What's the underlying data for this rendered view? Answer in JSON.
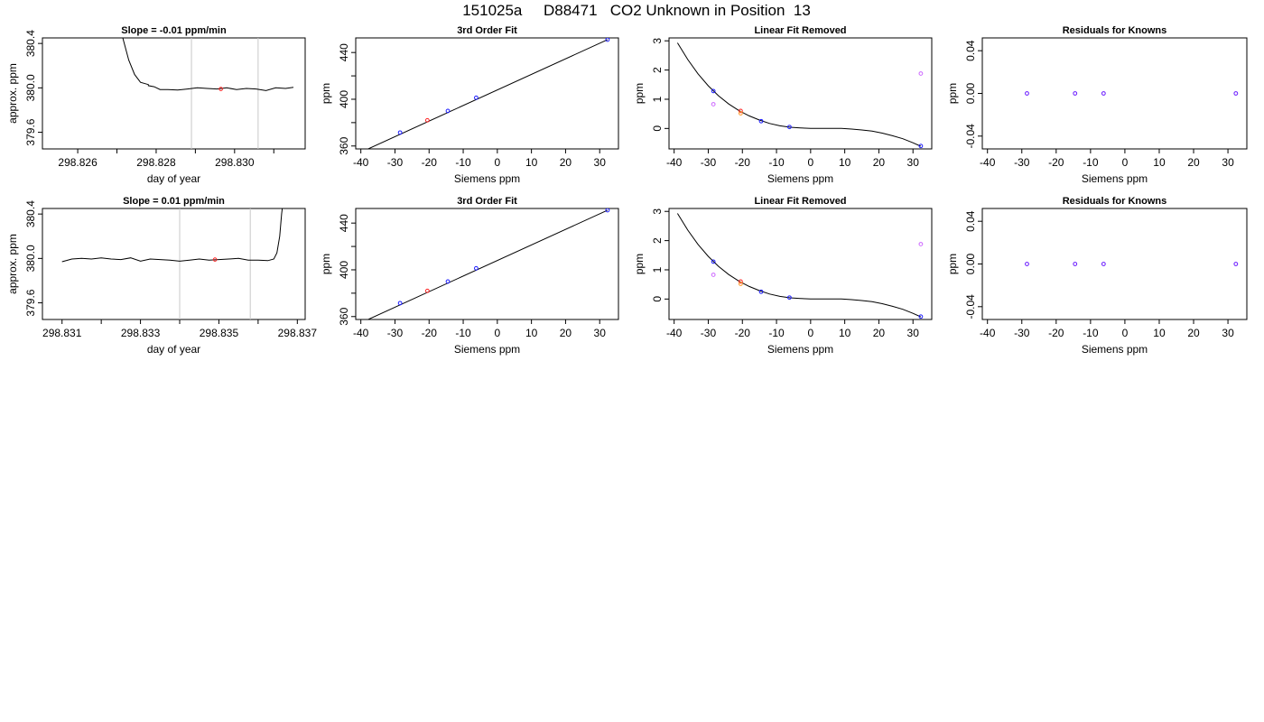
{
  "page_title": "151025a     D88471   CO2 Unknown in Position  13",
  "colors": {
    "axis": "#000000",
    "line": "#000000",
    "vline": "#c8c8c8",
    "known_blue": "#1a1aff",
    "red": "#ff2020",
    "orange": "#ff9a2a",
    "violet": "#cc66ff",
    "purple": "#6a1aff"
  },
  "chart_data": [
    {
      "panel": "row1-time",
      "type": "line",
      "title": "Slope =  -0.01  ppm/min",
      "xlabel": "day of year",
      "ylabel": "approx. ppm",
      "xlim": [
        298.8251,
        298.8318
      ],
      "ylim": [
        379.45,
        380.45
      ],
      "xticks": [
        "298.826",
        "298.828",
        "298.830"
      ],
      "xticks_minor": [
        298.827,
        298.829,
        298.831
      ],
      "yticks": [
        "379.6",
        "380.0",
        "380.4"
      ],
      "vlines": [
        298.8289,
        298.8306
      ],
      "marker": {
        "x": 298.82965,
        "y": 379.99,
        "color": "red"
      },
      "series": [
        {
          "x": [
            298.8278,
            298.82795,
            298.8281,
            298.8283,
            298.82855,
            298.8288,
            298.82905,
            298.8293,
            298.82955,
            298.8298,
            298.83005,
            298.8303,
            298.83055,
            298.8308,
            298.83105,
            298.8313,
            298.8315
          ],
          "y": [
            380.02,
            380.01,
            379.985,
            379.985,
            379.98,
            379.99,
            380.0,
            379.995,
            379.99,
            380.0,
            379.985,
            379.995,
            379.99,
            379.975,
            380.0,
            379.995,
            380.005
          ]
        }
      ],
      "spike": {
        "x": [
          298.827,
          298.82715,
          298.8273,
          298.82745,
          298.8276,
          298.8278
        ],
        "y": [
          380.7,
          380.45,
          380.25,
          380.12,
          380.05,
          380.03
        ],
        "side": "start"
      }
    },
    {
      "panel": "row1-fit",
      "type": "scatter",
      "title": "3rd Order Fit",
      "xlabel": "Siemens ppm",
      "ylabel": "ppm",
      "xlim": [
        -41.5,
        35.5
      ],
      "ylim": [
        357.5,
        452.5
      ],
      "xticks": [
        "-40",
        "-30",
        "-20",
        "-10",
        "0",
        "10",
        "20",
        "30"
      ],
      "yticks": [
        "360",
        "400",
        "440"
      ],
      "yticks_minor": [
        380,
        420
      ],
      "fit_line": {
        "x": [
          -39.0,
          32.3
        ],
        "y": [
          356.0,
          451.0
        ]
      },
      "points": [
        {
          "x": -28.5,
          "y": 371.5,
          "color": "known_blue"
        },
        {
          "x": -20.5,
          "y": 382.0,
          "color": "red"
        },
        {
          "x": -14.5,
          "y": 390.0,
          "color": "known_blue"
        },
        {
          "x": -6.2,
          "y": 401.3,
          "color": "known_blue"
        },
        {
          "x": 32.3,
          "y": 451.0,
          "color": "known_blue"
        }
      ]
    },
    {
      "panel": "row1-linear",
      "type": "scatter",
      "title": "Linear Fit Removed",
      "xlabel": "Siemens ppm",
      "ylabel": "ppm",
      "xlim": [
        -41.5,
        35.5
      ],
      "ylim": [
        -0.7,
        3.1
      ],
      "xticks": [
        "-40",
        "-30",
        "-20",
        "-10",
        "0",
        "10",
        "20",
        "30"
      ],
      "yticks": [
        "0",
        "1",
        "2",
        "3"
      ],
      "curve": {
        "x": [
          -39,
          -36,
          -33,
          -30,
          -27,
          -24,
          -21,
          -18,
          -15,
          -12,
          -9,
          -6,
          -3,
          0,
          3,
          6,
          9,
          12,
          15,
          18,
          21,
          24,
          27,
          30,
          32.3
        ],
        "y": [
          2.93,
          2.36,
          1.87,
          1.46,
          1.12,
          0.84,
          0.61,
          0.43,
          0.29,
          0.17,
          0.09,
          0.04,
          0.02,
          0.0,
          0.0,
          0.0,
          0.0,
          -0.02,
          -0.05,
          -0.09,
          -0.16,
          -0.25,
          -0.35,
          -0.49,
          -0.61
        ]
      },
      "points": [
        {
          "x": -28.5,
          "y": 1.28,
          "color": "known_blue"
        },
        {
          "x": -28.5,
          "y": 0.83,
          "color": "violet"
        },
        {
          "x": -20.5,
          "y": 0.6,
          "color": "red"
        },
        {
          "x": -20.5,
          "y": 0.52,
          "color": "orange"
        },
        {
          "x": -14.5,
          "y": 0.25,
          "color": "known_blue"
        },
        {
          "x": -6.2,
          "y": 0.05,
          "color": "known_blue"
        },
        {
          "x": 32.3,
          "y": -0.6,
          "color": "known_blue"
        },
        {
          "x": 32.3,
          "y": 1.88,
          "color": "violet"
        }
      ]
    },
    {
      "panel": "row1-residuals",
      "type": "scatter",
      "title": "Residuals for Knowns",
      "xlabel": "Siemens ppm",
      "ylabel": "ppm",
      "xlim": [
        -41.5,
        35.5
      ],
      "ylim": [
        -0.052,
        0.052
      ],
      "xticks": [
        "-40",
        "-30",
        "-20",
        "-10",
        "0",
        "10",
        "20",
        "30"
      ],
      "yticks": [
        "-0.04",
        "0.00",
        "0.04"
      ],
      "points": [
        {
          "x": -28.5,
          "y": 0.0,
          "color": "purple"
        },
        {
          "x": -14.5,
          "y": 0.0,
          "color": "purple"
        },
        {
          "x": -6.2,
          "y": 0.0,
          "color": "purple"
        },
        {
          "x": 32.3,
          "y": 0.0,
          "color": "purple"
        }
      ]
    },
    {
      "panel": "row2-time",
      "type": "line",
      "title": "Slope =  0.01  ppm/min",
      "xlabel": "day of year",
      "ylabel": "approx. ppm",
      "xlim": [
        298.8305,
        298.8372
      ],
      "ylim": [
        379.45,
        380.45
      ],
      "xticks": [
        "298.831",
        "298.833",
        "298.835",
        "298.837"
      ],
      "xticks_minor": [
        298.832,
        298.834,
        298.836
      ],
      "yticks": [
        "379.6",
        "380.0",
        "380.4"
      ],
      "vlines": [
        298.834,
        298.8358
      ],
      "marker": {
        "x": 298.8349,
        "y": 379.99,
        "color": "red"
      },
      "series": [
        {
          "x": [
            298.831,
            298.83125,
            298.8315,
            298.83175,
            298.832,
            298.83225,
            298.8325,
            298.83275,
            298.833,
            298.83325,
            298.8335,
            298.83375,
            298.834,
            298.83425,
            298.8345,
            298.83475,
            298.835,
            298.83525,
            298.8355,
            298.83575,
            298.836,
            298.83625,
            298.8364
          ],
          "y": [
            379.97,
            379.995,
            380.0,
            379.995,
            380.005,
            379.995,
            379.99,
            380.005,
            379.975,
            379.995,
            379.99,
            379.985,
            379.975,
            379.985,
            379.995,
            379.985,
            379.99,
            379.995,
            380.0,
            379.985,
            379.985,
            379.98,
            379.995
          ]
        }
      ],
      "spike": {
        "x": [
          298.8364,
          298.83648,
          298.83655,
          298.8366,
          298.83665
        ],
        "y": [
          379.995,
          380.05,
          380.2,
          380.4,
          380.55
        ],
        "side": "end"
      }
    },
    {
      "panel": "row2-fit",
      "type": "scatter",
      "title": "3rd Order Fit",
      "xlabel": "Siemens ppm",
      "ylabel": "ppm",
      "xlim": [
        -41.5,
        35.5
      ],
      "ylim": [
        357.5,
        452.5
      ],
      "xticks": [
        "-40",
        "-30",
        "-20",
        "-10",
        "0",
        "10",
        "20",
        "30"
      ],
      "yticks": [
        "360",
        "400",
        "440"
      ],
      "yticks_minor": [
        380,
        420
      ],
      "fit_line": {
        "x": [
          -39.0,
          32.3
        ],
        "y": [
          356.0,
          451.0
        ]
      },
      "points": [
        {
          "x": -28.5,
          "y": 371.5,
          "color": "known_blue"
        },
        {
          "x": -20.5,
          "y": 382.0,
          "color": "red"
        },
        {
          "x": -14.5,
          "y": 390.0,
          "color": "known_blue"
        },
        {
          "x": -6.2,
          "y": 401.3,
          "color": "known_blue"
        },
        {
          "x": 32.3,
          "y": 451.0,
          "color": "known_blue"
        }
      ]
    },
    {
      "panel": "row2-linear",
      "type": "scatter",
      "title": "Linear Fit Removed",
      "xlabel": "Siemens ppm",
      "ylabel": "ppm",
      "xlim": [
        -41.5,
        35.5
      ],
      "ylim": [
        -0.7,
        3.1
      ],
      "xticks": [
        "-40",
        "-30",
        "-20",
        "-10",
        "0",
        "10",
        "20",
        "30"
      ],
      "yticks": [
        "0",
        "1",
        "2",
        "3"
      ],
      "curve": {
        "x": [
          -39,
          -36,
          -33,
          -30,
          -27,
          -24,
          -21,
          -18,
          -15,
          -12,
          -9,
          -6,
          -3,
          0,
          3,
          6,
          9,
          12,
          15,
          18,
          21,
          24,
          27,
          30,
          32.3
        ],
        "y": [
          2.93,
          2.36,
          1.87,
          1.46,
          1.12,
          0.84,
          0.61,
          0.43,
          0.29,
          0.17,
          0.09,
          0.04,
          0.02,
          0.0,
          0.0,
          0.0,
          0.0,
          -0.02,
          -0.05,
          -0.09,
          -0.16,
          -0.25,
          -0.35,
          -0.49,
          -0.61
        ]
      },
      "points": [
        {
          "x": -28.5,
          "y": 1.28,
          "color": "known_blue"
        },
        {
          "x": -28.5,
          "y": 0.83,
          "color": "violet"
        },
        {
          "x": -20.5,
          "y": 0.6,
          "color": "red"
        },
        {
          "x": -20.5,
          "y": 0.52,
          "color": "orange"
        },
        {
          "x": -14.5,
          "y": 0.25,
          "color": "known_blue"
        },
        {
          "x": -6.2,
          "y": 0.05,
          "color": "known_blue"
        },
        {
          "x": 32.3,
          "y": -0.6,
          "color": "known_blue"
        },
        {
          "x": 32.3,
          "y": 1.88,
          "color": "violet"
        }
      ]
    },
    {
      "panel": "row2-residuals",
      "type": "scatter",
      "title": "Residuals for Knowns",
      "xlabel": "Siemens ppm",
      "ylabel": "ppm",
      "xlim": [
        -41.5,
        35.5
      ],
      "ylim": [
        -0.052,
        0.052
      ],
      "xticks": [
        "-40",
        "-30",
        "-20",
        "-10",
        "0",
        "10",
        "20",
        "30"
      ],
      "yticks": [
        "-0.04",
        "0.00",
        "0.04"
      ],
      "points": [
        {
          "x": -28.5,
          "y": 0.0,
          "color": "purple"
        },
        {
          "x": -14.5,
          "y": 0.0,
          "color": "purple"
        },
        {
          "x": -6.2,
          "y": 0.0,
          "color": "purple"
        },
        {
          "x": 32.3,
          "y": 0.0,
          "color": "purple"
        }
      ]
    }
  ]
}
